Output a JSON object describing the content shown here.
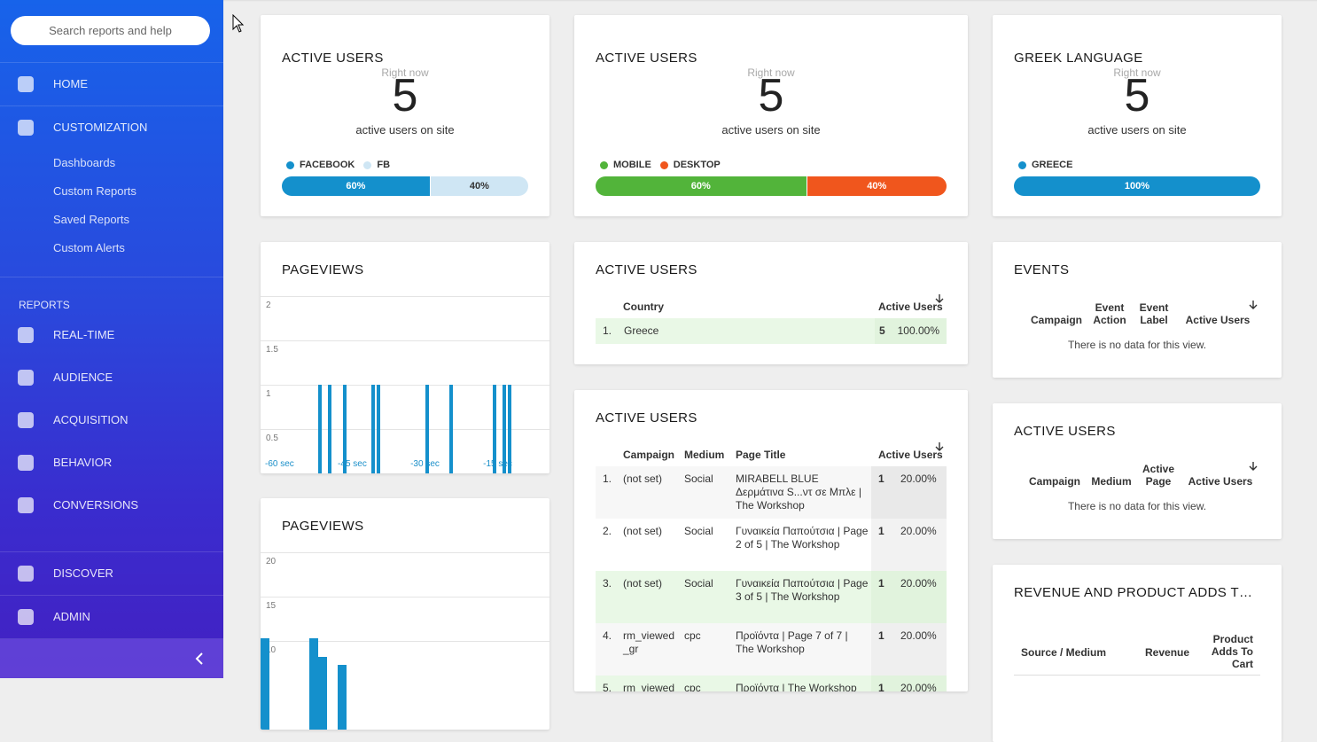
{
  "sidebar": {
    "search_placeholder": "Search reports and help",
    "primary": [
      "HOME",
      "CUSTOMIZATION"
    ],
    "customization_items": [
      "Dashboards",
      "Custom Reports",
      "Saved Reports",
      "Custom Alerts"
    ],
    "reports_heading": "REPORTS",
    "reports": [
      "REAL-TIME",
      "AUDIENCE",
      "ACQUISITION",
      "BEHAVIOR",
      "CONVERSIONS"
    ],
    "bottom": [
      "DISCOVER",
      "ADMIN"
    ]
  },
  "counters": [
    {
      "title": "ACTIVE USERS",
      "caption": "Right now",
      "count": 5,
      "subtitle": "active users on site",
      "legend": [
        "FACEBOOK",
        "FB"
      ],
      "colors": [
        "#1490cc",
        "#cfe6f4"
      ],
      "values": [
        60,
        40
      ],
      "value_labels": [
        "60%",
        "40%"
      ]
    },
    {
      "title": "ACTIVE USERS",
      "caption": "Right now",
      "count": 5,
      "subtitle": "active users on site",
      "legend": [
        "MOBILE",
        "DESKTOP"
      ],
      "colors": [
        "#52b43a",
        "#f0561d"
      ],
      "values": [
        60,
        40
      ],
      "value_labels": [
        "60%",
        "40%"
      ]
    },
    {
      "title": "GREEK LANGUAGE",
      "caption": "Right now",
      "count": 5,
      "subtitle": "active users on site",
      "legend": [
        "GREECE"
      ],
      "colors": [
        "#1490cc"
      ],
      "values": [
        100
      ],
      "value_labels": [
        "100%"
      ]
    }
  ],
  "pageviews_seconds": {
    "type": "bar",
    "title": "PAGEVIEWS",
    "color": "#1490cc",
    "x": [
      -49,
      -47,
      -44,
      -38,
      -37,
      -27,
      -22,
      -13,
      -11,
      -10
    ],
    "values": [
      1,
      1,
      1,
      1,
      1,
      1,
      1,
      1,
      1,
      1
    ],
    "xlim": [
      -60,
      0
    ],
    "xticks": [
      {
        "value": -60,
        "label": "-60 sec"
      },
      {
        "value": -45,
        "label": "-45 sec"
      },
      {
        "value": -30,
        "label": "-30 sec"
      },
      {
        "value": -15,
        "label": "-15 sec"
      }
    ],
    "ylim": [
      0,
      2
    ],
    "yticks": [
      2,
      1.5,
      1,
      0.5
    ],
    "grid": true
  },
  "pageviews_minutes": {
    "type": "bar",
    "title": "PAGEVIEWS",
    "color": "#1490cc",
    "x": [
      0,
      5,
      6,
      8
    ],
    "values": [
      10.3,
      10.3,
      8.2,
      7.3
    ],
    "xlim": [
      0,
      30
    ],
    "ylim": [
      0,
      20
    ],
    "yticks": [
      20,
      15,
      10
    ],
    "grid": true
  },
  "country_table": {
    "title": "ACTIVE USERS",
    "columns": [
      "Country",
      "Active Users"
    ],
    "rows": [
      [
        "1.",
        "Greece",
        "5",
        "100.00%"
      ]
    ]
  },
  "page_table": {
    "title": "ACTIVE USERS",
    "columns": [
      "Campaign",
      "Medium",
      "Page Title",
      "Active Users"
    ],
    "rows": [
      [
        "1.",
        "(not set)",
        "Social",
        "MIRABELL BLUE Δερμάτινα S...ντ σε Μπλε | The Workshop",
        "1",
        "20.00%"
      ],
      [
        "2.",
        "(not set)",
        "Social",
        "Γυναικεία Παπούτσια | Page 2 of 5 | The Workshop",
        "1",
        "20.00%"
      ],
      [
        "3.",
        "(not set)",
        "Social",
        "Γυναικεία Παπούτσια | Page 3 of 5 | The Workshop",
        "1",
        "20.00%"
      ],
      [
        "4.",
        "rm_viewed_gr",
        "cpc",
        "Προϊόντα | Page 7 of 7 | The Workshop",
        "1",
        "20.00%"
      ],
      [
        "5.",
        "rm_viewed_gr",
        "cpc",
        "Προϊόντα | The Workshop",
        "1",
        "20.00%"
      ]
    ]
  },
  "events_table": {
    "title": "EVENTS",
    "columns": [
      "Campaign",
      "Event Action",
      "Event Label",
      "Active Users"
    ],
    "empty": "There is no data for this view."
  },
  "active_page_table": {
    "title": "ACTIVE USERS",
    "columns": [
      "Campaign",
      "Medium",
      "Active Page",
      "Active Users"
    ],
    "empty": "There is no data for this view."
  },
  "revenue_table": {
    "title": "REVENUE AND PRODUCT ADDS T…",
    "columns": [
      "Source / Medium",
      "Revenue",
      "Product Adds To Cart"
    ]
  }
}
